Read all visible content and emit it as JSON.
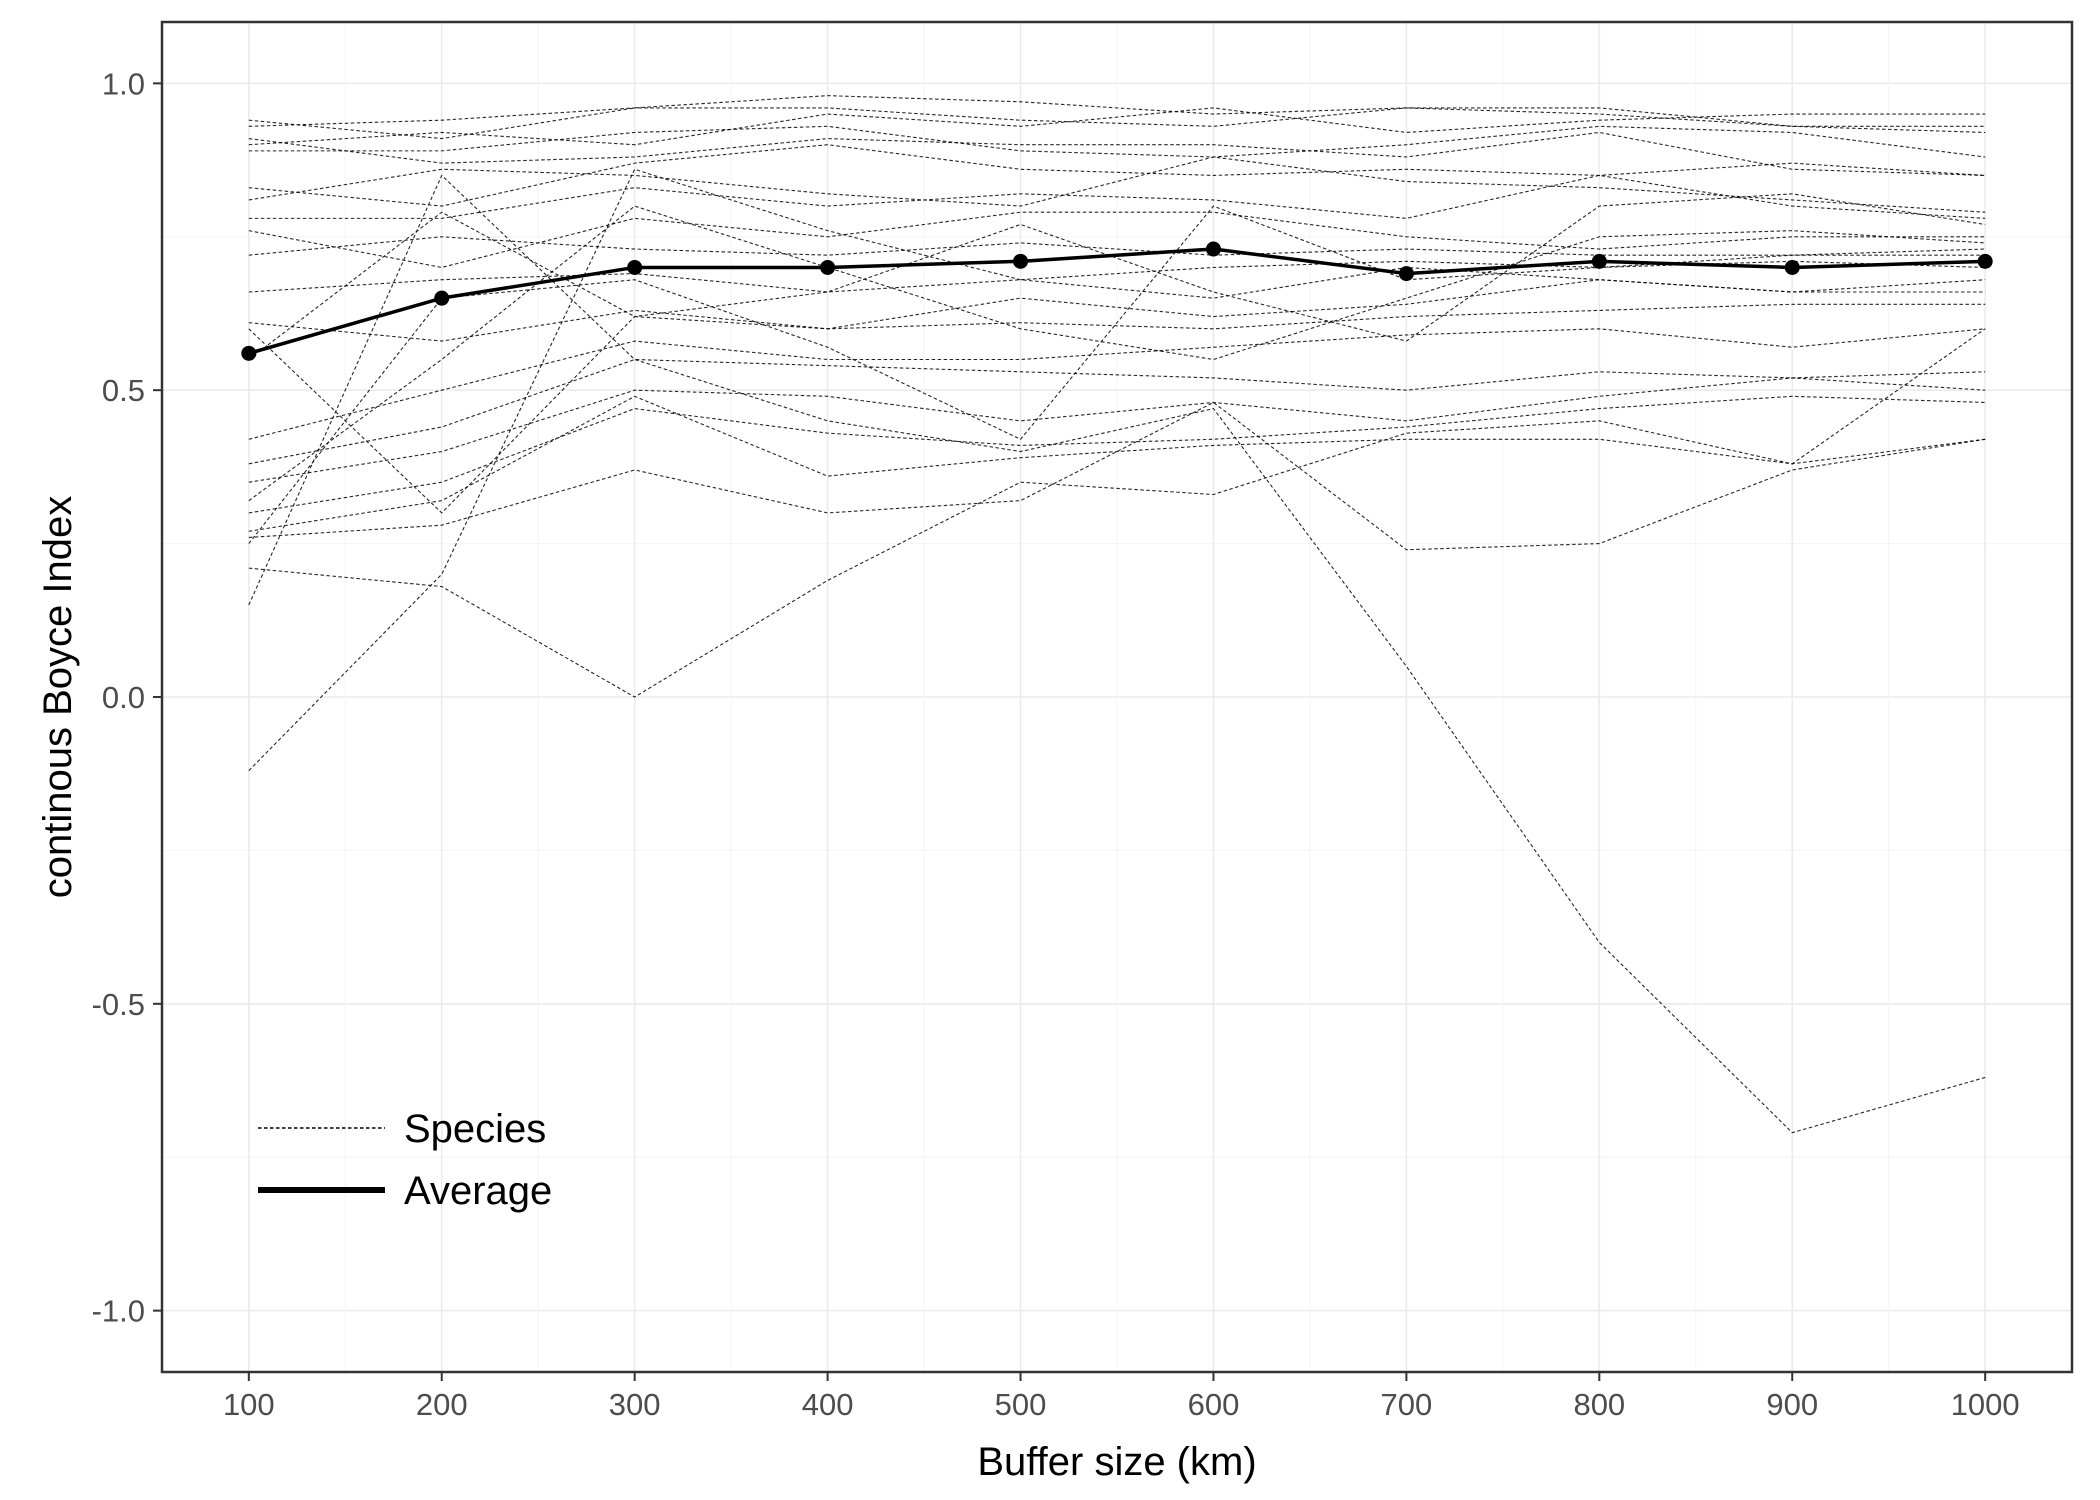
{
  "chart_data": {
    "type": "line",
    "title": "",
    "xlabel": "Buffer size (km)",
    "ylabel": "continous Boyce Index",
    "x": [
      100,
      200,
      300,
      400,
      500,
      600,
      700,
      800,
      900,
      1000
    ],
    "xticks": [
      100,
      200,
      300,
      400,
      500,
      600,
      700,
      800,
      900,
      1000
    ],
    "yticks": [
      -1.0,
      -0.5,
      0.0,
      0.5,
      1.0
    ],
    "ytick_labels": [
      "-1.0",
      "-0.5",
      "0.0",
      "0.5",
      "1.0"
    ],
    "xlim": [
      55,
      1045
    ],
    "ylim": [
      -1.1,
      1.1
    ],
    "grid": true,
    "legend_position": "bottom-left",
    "legend": [
      {
        "label": "Species",
        "style": "dashed"
      },
      {
        "label": "Average",
        "style": "solid"
      }
    ],
    "colors": {
      "species": "#000000",
      "average": "#000000",
      "grid": "#ebebeb",
      "panel_border": "#333333"
    },
    "average": {
      "name": "Average",
      "values": [
        0.56,
        0.65,
        0.7,
        0.7,
        0.71,
        0.73,
        0.69,
        0.71,
        0.7,
        0.71
      ]
    },
    "species": [
      {
        "values": [
          0.94,
          0.91,
          0.96,
          0.98,
          0.97,
          0.95,
          0.96,
          0.95,
          0.93,
          0.92
        ]
      },
      {
        "values": [
          0.93,
          0.94,
          0.96,
          0.96,
          0.94,
          0.93,
          0.96,
          0.96,
          0.93,
          0.93
        ]
      },
      {
        "values": [
          0.9,
          0.92,
          0.9,
          0.95,
          0.93,
          0.96,
          0.92,
          0.94,
          0.95,
          0.95
        ]
      },
      {
        "values": [
          0.89,
          0.89,
          0.92,
          0.93,
          0.89,
          0.88,
          0.9,
          0.93,
          0.92,
          0.88
        ]
      },
      {
        "values": [
          0.91,
          0.87,
          0.88,
          0.91,
          0.9,
          0.9,
          0.88,
          0.92,
          0.86,
          0.85
        ]
      },
      {
        "values": [
          0.83,
          0.8,
          0.87,
          0.9,
          0.86,
          0.85,
          0.86,
          0.85,
          0.87,
          0.85
        ]
      },
      {
        "values": [
          0.81,
          0.86,
          0.85,
          0.82,
          0.8,
          0.88,
          0.84,
          0.83,
          0.81,
          0.79
        ]
      },
      {
        "values": [
          0.78,
          0.78,
          0.83,
          0.8,
          0.82,
          0.81,
          0.78,
          0.85,
          0.8,
          0.78
        ]
      },
      {
        "values": [
          0.76,
          0.7,
          0.78,
          0.75,
          0.79,
          0.79,
          0.75,
          0.73,
          0.75,
          0.75
        ]
      },
      {
        "values": [
          0.72,
          0.75,
          0.73,
          0.72,
          0.74,
          0.72,
          0.73,
          0.72,
          0.72,
          0.73
        ]
      },
      {
        "values": [
          0.66,
          0.68,
          0.69,
          0.66,
          0.68,
          0.7,
          0.71,
          0.7,
          0.71,
          0.7
        ]
      },
      {
        "values": [
          0.61,
          0.58,
          0.63,
          0.6,
          0.65,
          0.62,
          0.64,
          0.68,
          0.66,
          0.66
        ]
      },
      {
        "values": [
          0.55,
          0.79,
          0.62,
          0.6,
          0.61,
          0.6,
          0.62,
          0.63,
          0.64,
          0.64
        ]
      },
      {
        "values": [
          0.42,
          0.5,
          0.58,
          0.55,
          0.55,
          0.57,
          0.59,
          0.6,
          0.57,
          0.6
        ]
      },
      {
        "values": [
          0.38,
          0.44,
          0.55,
          0.54,
          0.53,
          0.52,
          0.5,
          0.53,
          0.52,
          0.53
        ]
      },
      {
        "values": [
          0.35,
          0.4,
          0.5,
          0.49,
          0.45,
          0.48,
          0.45,
          0.49,
          0.52,
          0.5
        ]
      },
      {
        "values": [
          0.3,
          0.35,
          0.47,
          0.43,
          0.41,
          0.42,
          0.44,
          0.47,
          0.49,
          0.48
        ]
      },
      {
        "values": [
          0.27,
          0.32,
          0.49,
          0.36,
          0.39,
          0.41,
          0.42,
          0.42,
          0.38,
          0.42
        ]
      },
      {
        "values": [
          0.26,
          0.28,
          0.37,
          0.3,
          0.32,
          0.48,
          0.24,
          0.25,
          0.37,
          0.42
        ]
      },
      {
        "values": [
          0.21,
          0.18,
          0.0,
          0.19,
          0.35,
          0.33,
          0.43,
          0.45,
          0.38,
          0.6
        ]
      },
      {
        "values": [
          0.15,
          0.85,
          0.55,
          0.45,
          0.4,
          0.47,
          0.05,
          -0.4,
          -0.71,
          -0.62
        ]
      },
      {
        "values": [
          -0.12,
          0.2,
          0.86,
          0.76,
          0.68,
          0.65,
          0.7,
          0.68,
          0.66,
          0.68
        ]
      },
      {
        "values": [
          0.25,
          0.65,
          0.68,
          0.57,
          0.42,
          0.8,
          0.68,
          0.7,
          0.72,
          0.72
        ]
      },
      {
        "values": [
          0.32,
          0.55,
          0.8,
          0.7,
          0.6,
          0.55,
          0.65,
          0.75,
          0.76,
          0.74
        ]
      },
      {
        "values": [
          0.6,
          0.3,
          0.62,
          0.66,
          0.77,
          0.66,
          0.58,
          0.8,
          0.82,
          0.77
        ]
      }
    ]
  }
}
